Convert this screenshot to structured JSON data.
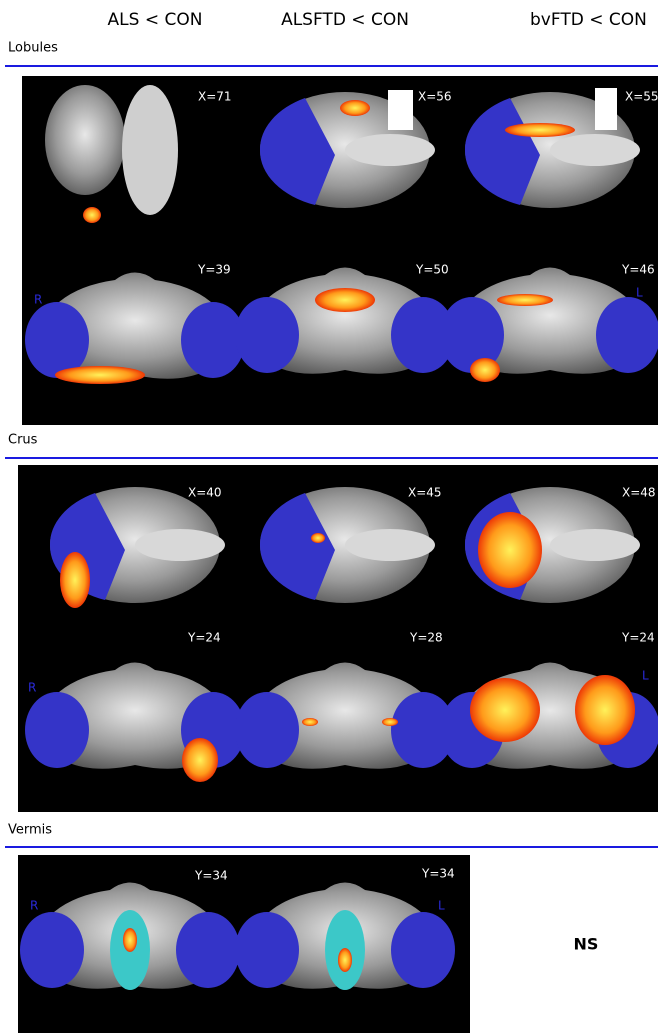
{
  "columns": [
    "ALS < CON",
    "ALSFTD < CON",
    "bvFTD < CON"
  ],
  "sections": [
    {
      "label": "Lobules",
      "coords": [
        "X=71",
        "X=56",
        "X=55",
        "Y=39",
        "Y=50",
        "Y=46"
      ],
      "right_side": "R",
      "left_side": "L"
    },
    {
      "label": "Crus",
      "coords": [
        "X=40",
        "X=45",
        "X=48",
        "Y=24",
        "Y=28",
        "Y=24"
      ],
      "right_side": "R",
      "left_side": "L"
    },
    {
      "label": "Vermis",
      "coords": [
        "Y=34",
        "Y=34"
      ],
      "right_side": "R",
      "left_side": "L",
      "note": "NS"
    }
  ]
}
